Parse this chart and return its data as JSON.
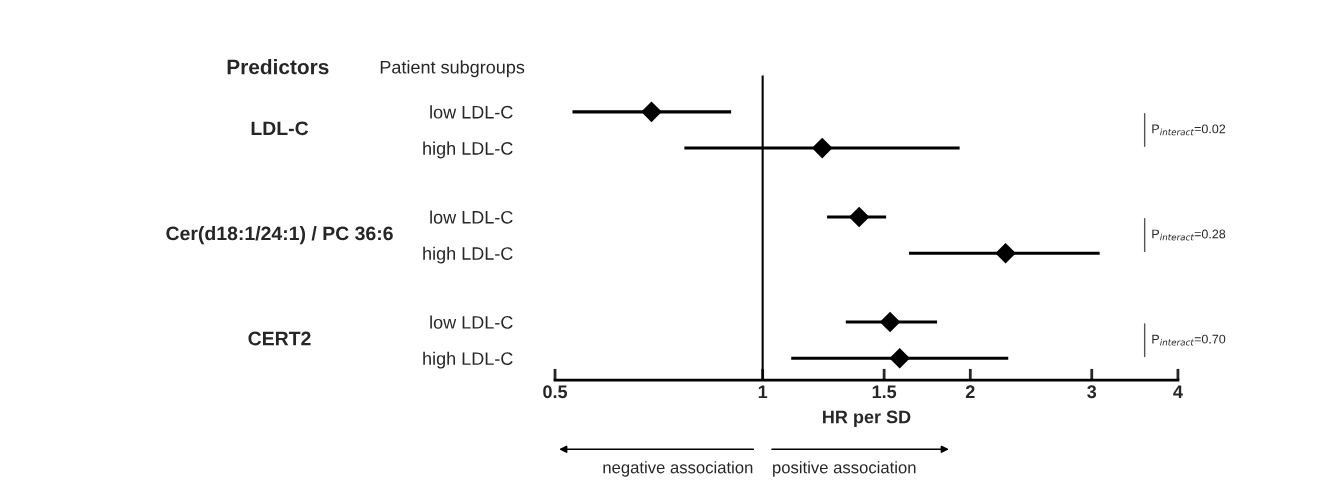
{
  "chart_data": {
    "type": "scatter",
    "orientation": "horizontal",
    "categories": [
      "low LDL-C",
      "high LDL-C",
      "low LDL-C",
      "high LDL-C",
      "low LDL-C",
      "high LDL-C"
    ],
    "color": "#000000",
    "values": [
      0.69,
      1.22,
      1.38,
      2.25,
      1.53,
      1.58
    ],
    "errors": [
      [
        0.53,
        0.9
      ],
      [
        0.77,
        1.93
      ],
      [
        1.24,
        1.51
      ],
      [
        1.63,
        3.08
      ],
      [
        1.32,
        1.79
      ],
      [
        1.1,
        2.27
      ]
    ],
    "log": "x",
    "xlim": [
      0.5,
      4
    ],
    "xticks": [
      0.5,
      1,
      1.5,
      2,
      3,
      4
    ],
    "xlabel": "HR per SD",
    "ref_lines": [
      {
        "axis": "x",
        "value": 1,
        "color": "#000000"
      }
    ],
    "marker": "diamond",
    "line_style": "solid",
    "grid": false,
    "legend": false,
    "annotations": [
      "Predictors",
      "Patient subgroups",
      "LDL-C",
      "Cer(d18:1/24:1) / PC 36:6",
      "CERT2",
      "P$_{interact}$=0.02",
      "P$_{interact}$=0.28",
      "P$_{interact}$=0.70",
      "negative association",
      "positive association"
    ]
  }
}
